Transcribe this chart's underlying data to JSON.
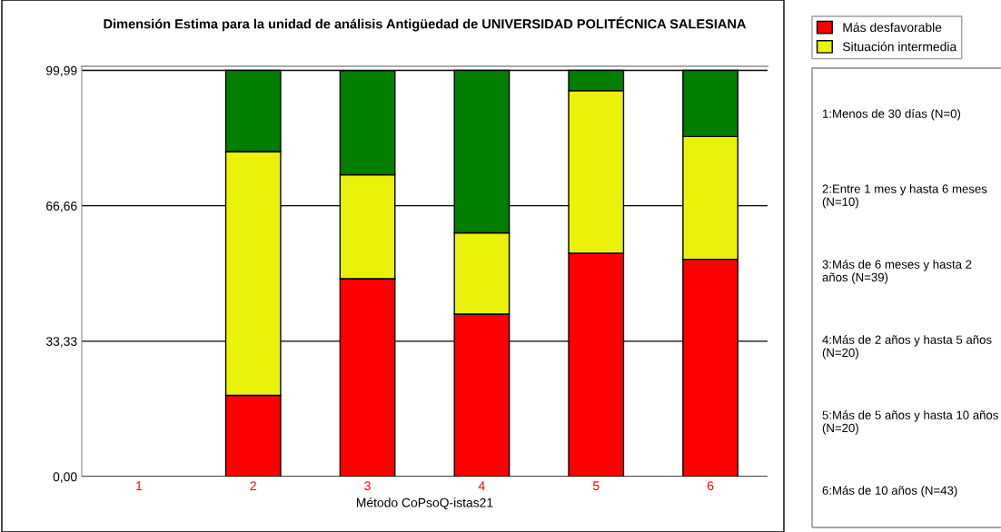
{
  "chart_data": {
    "type": "bar",
    "title": "Dimensión Estima para la unidad de análisis Antigüedad de UNIVERSIDAD POLITÉCNICA SALESIANA",
    "xlabel": "Método CoPsoQ-istas21",
    "categories": [
      "1",
      "2",
      "3",
      "4",
      "5",
      "6"
    ],
    "stacked": true,
    "series": [
      {
        "name": "Más desfavorable",
        "color": "#ff0000",
        "values": [
          0,
          20,
          48.7,
          40,
          55,
          53.5
        ]
      },
      {
        "name": "Situación intermedia",
        "color": "#eaf20c",
        "values": [
          0,
          60,
          25.6,
          20,
          40,
          30.2
        ]
      },
      {
        "color": "#007f00",
        "values": [
          0,
          20,
          25.6,
          40,
          5,
          16.3
        ]
      }
    ],
    "ylim": [
      0,
      101
    ],
    "yticks": [
      {
        "value": 0,
        "label": "0,00"
      },
      {
        "value": 33.33,
        "label": "33,33"
      },
      {
        "value": 66.66,
        "label": "66,66"
      },
      {
        "value": 99.99,
        "label": "99,99"
      }
    ],
    "grid": "y",
    "legend": "top right",
    "annotations": [
      "1:Menos de 30 días (N=0)",
      "2:Entre 1 mes y hasta 6 meses (N=10)",
      "3:Más de 6 meses y hasta 2 años (N=39)",
      "4:Más de 2 años y hasta 5 años (N=20)",
      "5:Más de 5 años y hasta 10 años (N=20)",
      "6:Más de 10 años (N=43)"
    ]
  }
}
